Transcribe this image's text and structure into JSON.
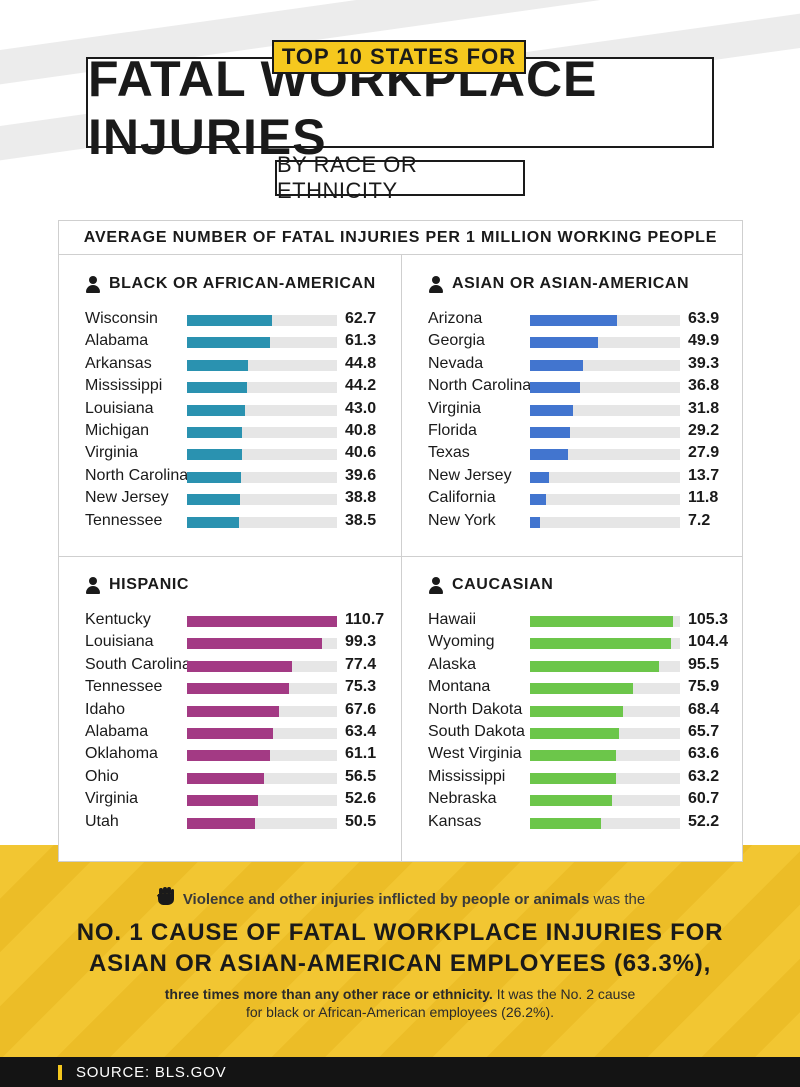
{
  "header": {
    "tag": "TOP 10 STATES FOR",
    "title": "FATAL WORKPLACE INJURIES",
    "subtitle": "BY RACE OR ETHNICITY"
  },
  "chart_data": {
    "type": "bar",
    "title": "AVERAGE NUMBER OF FATAL INJURIES PER 1 MILLION WORKING PEOPLE",
    "max": 110.7,
    "groups": [
      {
        "name": "BLACK OR AFRICAN-AMERICAN",
        "color": "#2a92b0",
        "categories": [
          "Wisconsin",
          "Alabama",
          "Arkansas",
          "Mississippi",
          "Louisiana",
          "Michigan",
          "Virginia",
          "North Carolina",
          "New Jersey",
          "Tennessee"
        ],
        "values": [
          62.7,
          61.3,
          44.8,
          44.2,
          43.0,
          40.8,
          40.6,
          39.6,
          38.8,
          38.5
        ],
        "labels": [
          "62.7",
          "61.3",
          "44.8",
          "44.2",
          "43.0",
          "40.8",
          "40.6",
          "39.6",
          "38.8",
          "38.5"
        ]
      },
      {
        "name": "ASIAN OR ASIAN-AMERICAN",
        "color": "#4275cf",
        "categories": [
          "Arizona",
          "Georgia",
          "Nevada",
          "North Carolina",
          "Virginia",
          "Florida",
          "Texas",
          "New Jersey",
          "California",
          "New York"
        ],
        "values": [
          63.9,
          49.9,
          39.3,
          36.8,
          31.8,
          29.2,
          27.9,
          13.7,
          11.8,
          7.2
        ],
        "labels": [
          "63.9",
          "49.9",
          "39.3",
          "36.8",
          "31.8",
          "29.2",
          "27.9",
          "13.7",
          "11.8",
          "7.2"
        ]
      },
      {
        "name": "HISPANIC",
        "color": "#a33a84",
        "categories": [
          "Kentucky",
          "Louisiana",
          "South Carolina",
          "Tennessee",
          "Idaho",
          "Alabama",
          "Oklahoma",
          "Ohio",
          "Virginia",
          "Utah"
        ],
        "values": [
          110.7,
          99.3,
          77.4,
          75.3,
          67.6,
          63.4,
          61.1,
          56.5,
          52.6,
          50.5
        ],
        "labels": [
          "110.7",
          "99.3",
          "77.4",
          "75.3",
          "67.6",
          "63.4",
          "61.1",
          "56.5",
          "52.6",
          "50.5"
        ]
      },
      {
        "name": "CAUCASIAN",
        "color": "#6cc64a",
        "categories": [
          "Hawaii",
          "Wyoming",
          "Alaska",
          "Montana",
          "North Dakota",
          "South Dakota",
          "West Virginia",
          "Mississippi",
          "Nebraska",
          "Kansas"
        ],
        "values": [
          105.3,
          104.4,
          95.5,
          75.9,
          68.4,
          65.7,
          63.6,
          63.2,
          60.7,
          52.2
        ],
        "labels": [
          "105.3",
          "104.4",
          "95.5",
          "75.9",
          "68.4",
          "65.7",
          "63.6",
          "63.2",
          "60.7",
          "52.2"
        ]
      }
    ]
  },
  "callout": {
    "lead_bold": "Violence and other injuries inflicted by people or animals",
    "lead_rest": " was the",
    "headline_1": "NO. 1 CAUSE OF FATAL WORKPLACE INJURIES FOR",
    "headline_2": "ASIAN OR ASIAN-AMERICAN EMPLOYEES (63.3%),",
    "detail_bold": "three times more than any other race or ethnicity.",
    "detail_rest": " It was the No. 2 cause",
    "detail_2": "for black or African-American employees (26.2%)."
  },
  "footer": {
    "source": "SOURCE: BLS.GOV"
  }
}
